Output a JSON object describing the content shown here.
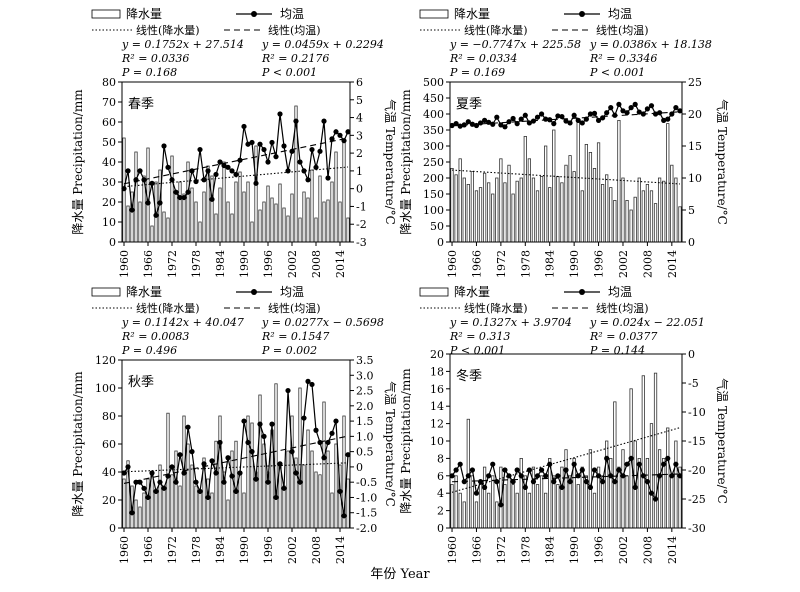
{
  "figure": {
    "xlabel": "年份 Year"
  },
  "chart_data": [
    {
      "type": "bar+line",
      "season": "春季",
      "x_start": 1960,
      "x_end": 2016,
      "x_ticks": [
        "1960",
        "1966",
        "1972",
        "1978",
        "1984",
        "1990",
        "1996",
        "2002",
        "2008",
        "2014"
      ],
      "ylabel_left": "降水量 Precipitation/mm",
      "ylabel_right": "气温 Temperature/°C",
      "ylim_left": [
        0,
        80
      ],
      "yticks_left": [
        "0",
        "10",
        "20",
        "30",
        "40",
        "50",
        "60",
        "70",
        "80"
      ],
      "ylim_right": [
        -3,
        6
      ],
      "yticks_right": [
        "-3",
        "-2",
        "-1",
        "0",
        "1",
        "2",
        "3",
        "4",
        "5",
        "6"
      ],
      "legend": {
        "bar": "降水量",
        "line": "均温",
        "trend_bar": "线性(降水量)",
        "trend_line": "线性(均温)"
      },
      "stats_bar": [
        "y = 0.1752x + 27.514",
        "R² = 0.0336",
        "P = 0.168"
      ],
      "stats_line": [
        "y = 0.0459x + 0.2294",
        "R² = 0.2176",
        "P < 0.001"
      ],
      "trend_bar": {
        "slope": 0.1752,
        "intercept": 27.514
      },
      "trend_line": {
        "slope": 0.0459,
        "intercept": 0.2294
      },
      "series": [
        {
          "name": "降水量",
          "kind": "bar",
          "values": [
            52,
            18,
            25,
            45,
            20,
            33,
            47,
            8,
            30,
            36,
            15,
            12,
            43,
            25,
            30,
            24,
            40,
            27,
            20,
            10,
            25,
            38,
            33,
            14,
            27,
            40,
            20,
            14,
            30,
            35,
            25,
            30,
            10,
            48,
            16,
            20,
            28,
            22,
            19,
            29,
            17,
            13,
            24,
            68,
            12,
            25,
            22,
            36,
            12,
            33,
            20,
            21,
            30,
            45,
            20,
            50,
            12
          ]
        },
        {
          "name": "均温",
          "kind": "line",
          "values": [
            0.0,
            1.0,
            -1.2,
            0.5,
            1.0,
            0.5,
            -0.8,
            0.3,
            -1.5,
            -0.8,
            2.4,
            1.2,
            0.5,
            -0.2,
            -0.5,
            -0.5,
            -0.2,
            1.0,
            0.4,
            2.2,
            0.5,
            1.0,
            -0.6,
            0.8,
            1.5,
            1.3,
            1.2,
            1.0,
            0.8,
            1.6,
            3.5,
            2.5,
            2.6,
            0.3,
            2.5,
            2.2,
            1.5,
            2.6,
            1.8,
            4.2,
            2.4,
            1.0,
            2.1,
            3.8,
            1.5,
            1.0,
            0.5,
            2.2,
            1.2,
            2.1,
            3.8,
            0.6,
            2.8,
            3.2,
            3.0,
            2.7,
            3.2
          ]
        }
      ]
    },
    {
      "type": "bar+line",
      "season": "夏季",
      "x_start": 1960,
      "x_end": 2016,
      "x_ticks": [
        "1960",
        "1966",
        "1972",
        "1978",
        "1984",
        "1990",
        "1996",
        "2002",
        "2008",
        "2014"
      ],
      "ylabel_left": "降水量 Precipitation/mm",
      "ylabel_right": "气温 Temperature/°C",
      "ylim_left": [
        0,
        500
      ],
      "yticks_left": [
        "0",
        "50",
        "100",
        "150",
        "200",
        "250",
        "300",
        "350",
        "400",
        "450",
        "500"
      ],
      "ylim_right": [
        0,
        25
      ],
      "yticks_right": [
        "0",
        "5",
        "10",
        "15",
        "20",
        "25"
      ],
      "legend": {
        "bar": "降水量",
        "line": "均温",
        "trend_bar": "线性(降水量)",
        "trend_line": "线性(均温)"
      },
      "stats_bar": [
        "y = −0.7747x + 225.58",
        "R² = 0.0334",
        "P = 0.169"
      ],
      "stats_line": [
        "y = 0.0386x + 18.138",
        "R² = 0.3346",
        "P < 0.001"
      ],
      "trend_bar": {
        "slope": -0.7747,
        "intercept": 225.58
      },
      "trend_line": {
        "slope": 0.0386,
        "intercept": 18.138
      },
      "series": [
        {
          "name": "降水量",
          "kind": "bar",
          "values": [
            230,
            210,
            260,
            200,
            180,
            220,
            160,
            170,
            215,
            185,
            150,
            200,
            260,
            185,
            240,
            150,
            190,
            200,
            330,
            260,
            200,
            160,
            205,
            300,
            170,
            350,
            205,
            185,
            240,
            270,
            220,
            380,
            160,
            305,
            280,
            230,
            310,
            180,
            210,
            170,
            130,
            380,
            200,
            130,
            100,
            140,
            200,
            160,
            180,
            160,
            120,
            200,
            190,
            370,
            240,
            200,
            110
          ]
        },
        {
          "name": "均温",
          "kind": "line",
          "values": [
            18.2,
            18.5,
            18.1,
            18.3,
            18.8,
            18.4,
            18.2,
            18.6,
            19.0,
            18.7,
            18.4,
            19.5,
            18.3,
            18.0,
            18.8,
            19.3,
            18.5,
            19.2,
            19.8,
            18.6,
            18.9,
            19.5,
            20.0,
            19.2,
            19.1,
            18.5,
            19.7,
            19.6,
            18.9,
            18.6,
            19.8,
            19.0,
            18.6,
            19.2,
            20.0,
            20.1,
            19.0,
            19.4,
            20.2,
            21.0,
            19.8,
            21.5,
            20.5,
            20.2,
            21.0,
            21.5,
            20.3,
            20.0,
            20.8,
            21.3,
            20.0,
            20.2,
            19.0,
            19.2,
            20.0,
            21.0,
            20.5
          ]
        }
      ]
    },
    {
      "type": "bar+line",
      "season": "秋季",
      "x_start": 1960,
      "x_end": 2016,
      "x_ticks": [
        "1960",
        "1966",
        "1972",
        "1978",
        "1984",
        "1990",
        "1996",
        "2002",
        "2008",
        "2014"
      ],
      "ylabel_left": "降水量 Precipitation/mm",
      "ylabel_right": "气温 Temperature/°C",
      "ylim_left": [
        0,
        120
      ],
      "yticks_left": [
        "0",
        "20",
        "40",
        "60",
        "80",
        "100",
        "120"
      ],
      "ylim_right": [
        -2.0,
        3.5
      ],
      "yticks_right": [
        "-2.0",
        "-1.5",
        "-1.0",
        "-0.5",
        "0",
        "0.5",
        "1.0",
        "1.5",
        "2.0",
        "2.5",
        "3.0",
        "3.5"
      ],
      "legend": {
        "bar": "降水量",
        "line": "均温",
        "trend_bar": "线性(降水量)",
        "trend_line": "线性(均温)"
      },
      "stats_bar": [
        "y = 0.1142x + 40.047",
        "R² = 0.0083",
        "P = 0.496"
      ],
      "stats_line": [
        "y = 0.0277x − 0.5698",
        "R² = 0.1547",
        "P = 0.002"
      ],
      "trend_bar": {
        "slope": 0.1142,
        "intercept": 40.047
      },
      "trend_line": {
        "slope": 0.0277,
        "intercept": -0.5698
      },
      "series": [
        {
          "name": "降水量",
          "kind": "bar",
          "values": [
            35,
            48,
            30,
            20,
            15,
            25,
            35,
            40,
            25,
            45,
            30,
            82,
            38,
            55,
            30,
            80,
            60,
            45,
            30,
            25,
            50,
            35,
            25,
            62,
            80,
            40,
            20,
            55,
            62,
            38,
            25,
            80,
            75,
            40,
            95,
            60,
            40,
            70,
            103,
            45,
            30,
            55,
            80,
            50,
            100,
            45,
            70,
            55,
            40,
            38,
            90,
            55,
            25,
            60,
            45,
            80,
            35
          ]
        },
        {
          "name": "均温",
          "kind": "line",
          "values": [
            -0.2,
            0.0,
            -1.5,
            -0.5,
            -0.5,
            -0.7,
            -1.0,
            -0.2,
            -0.8,
            -0.5,
            -0.7,
            -0.3,
            0.0,
            -0.5,
            0.4,
            -0.2,
            1.3,
            0.5,
            -0.5,
            -0.8,
            0.1,
            -1.0,
            0.2,
            -0.2,
            0.8,
            -0.5,
            0.3,
            -0.3,
            -0.8,
            -0.2,
            1.5,
            0.8,
            0.5,
            -0.4,
            1.4,
            1.0,
            -0.5,
            1.4,
            -1.0,
            0.1,
            -0.7,
            2.5,
            0.5,
            -0.2,
            -0.5,
            1.6,
            2.8,
            2.7,
            1.2,
            0.8,
            0.3,
            0.8,
            1.1,
            1.5,
            -0.8,
            -1.6,
            0.4
          ]
        }
      ]
    },
    {
      "type": "bar+line",
      "season": "冬季",
      "x_start": 1960,
      "x_end": 2016,
      "x_ticks": [
        "1960",
        "1966",
        "1972",
        "1978",
        "1984",
        "1990",
        "1996",
        "2002",
        "2008",
        "2014"
      ],
      "ylabel_left": "降水量 Precipitation/mm",
      "ylabel_right": "气温 Temperature/°C",
      "ylim_left": [
        0,
        20
      ],
      "yticks_left": [
        "0",
        "2",
        "4",
        "6",
        "8",
        "10",
        "12",
        "14",
        "16",
        "18",
        "20"
      ],
      "ylim_right": [
        -30,
        0
      ],
      "yticks_right": [
        "-30",
        "-25",
        "-20",
        "-15",
        "-10",
        "-5",
        "0"
      ],
      "legend": {
        "bar": "降水量",
        "line": "均温",
        "trend_bar": "线性(降水量)",
        "trend_line": "线性(均温)"
      },
      "stats_bar": [
        "y = 0.1327x + 3.9704",
        "R² = 0.313",
        "P < 0.001"
      ],
      "stats_line": [
        "y = 0.024x − 22.051",
        "R² = 0.0377",
        "P = 0.144"
      ],
      "trend_bar": {
        "slope": 0.1327,
        "intercept": 3.9704
      },
      "trend_line": {
        "slope": 0.024,
        "intercept": -22.051
      },
      "series": [
        {
          "name": "降水量",
          "kind": "bar",
          "values": [
            5,
            6,
            4,
            3,
            12.5,
            6,
            3,
            5,
            7,
            4,
            6,
            3,
            7,
            5,
            6,
            5,
            4,
            8,
            6,
            4,
            7,
            5,
            6,
            4,
            8,
            6,
            5,
            7,
            9,
            6,
            8,
            5,
            7,
            6,
            9,
            4,
            7,
            6,
            10,
            8,
            14.5,
            7,
            9,
            6,
            16,
            10,
            8,
            17.5,
            8,
            12,
            17.8,
            9,
            8,
            11.5,
            6,
            10,
            7
          ]
        },
        {
          "name": "均温",
          "kind": "line",
          "values": [
            -21,
            -20,
            -19,
            -22,
            -21,
            -20,
            -24,
            -22,
            -23,
            -21,
            -19,
            -22,
            -26,
            -20,
            -21,
            -22,
            -20,
            -21,
            -23,
            -20,
            -22,
            -21,
            -20,
            -21,
            -19,
            -22,
            -21,
            -23,
            -20,
            -22,
            -19,
            -21,
            -20,
            -22,
            -23,
            -20,
            -21,
            -22,
            -18,
            -21,
            -22,
            -20,
            -21,
            -19,
            -18,
            -23,
            -19,
            -21,
            -22,
            -24,
            -25,
            -21,
            -19,
            -18,
            -21,
            -19,
            -21
          ]
        }
      ]
    }
  ]
}
